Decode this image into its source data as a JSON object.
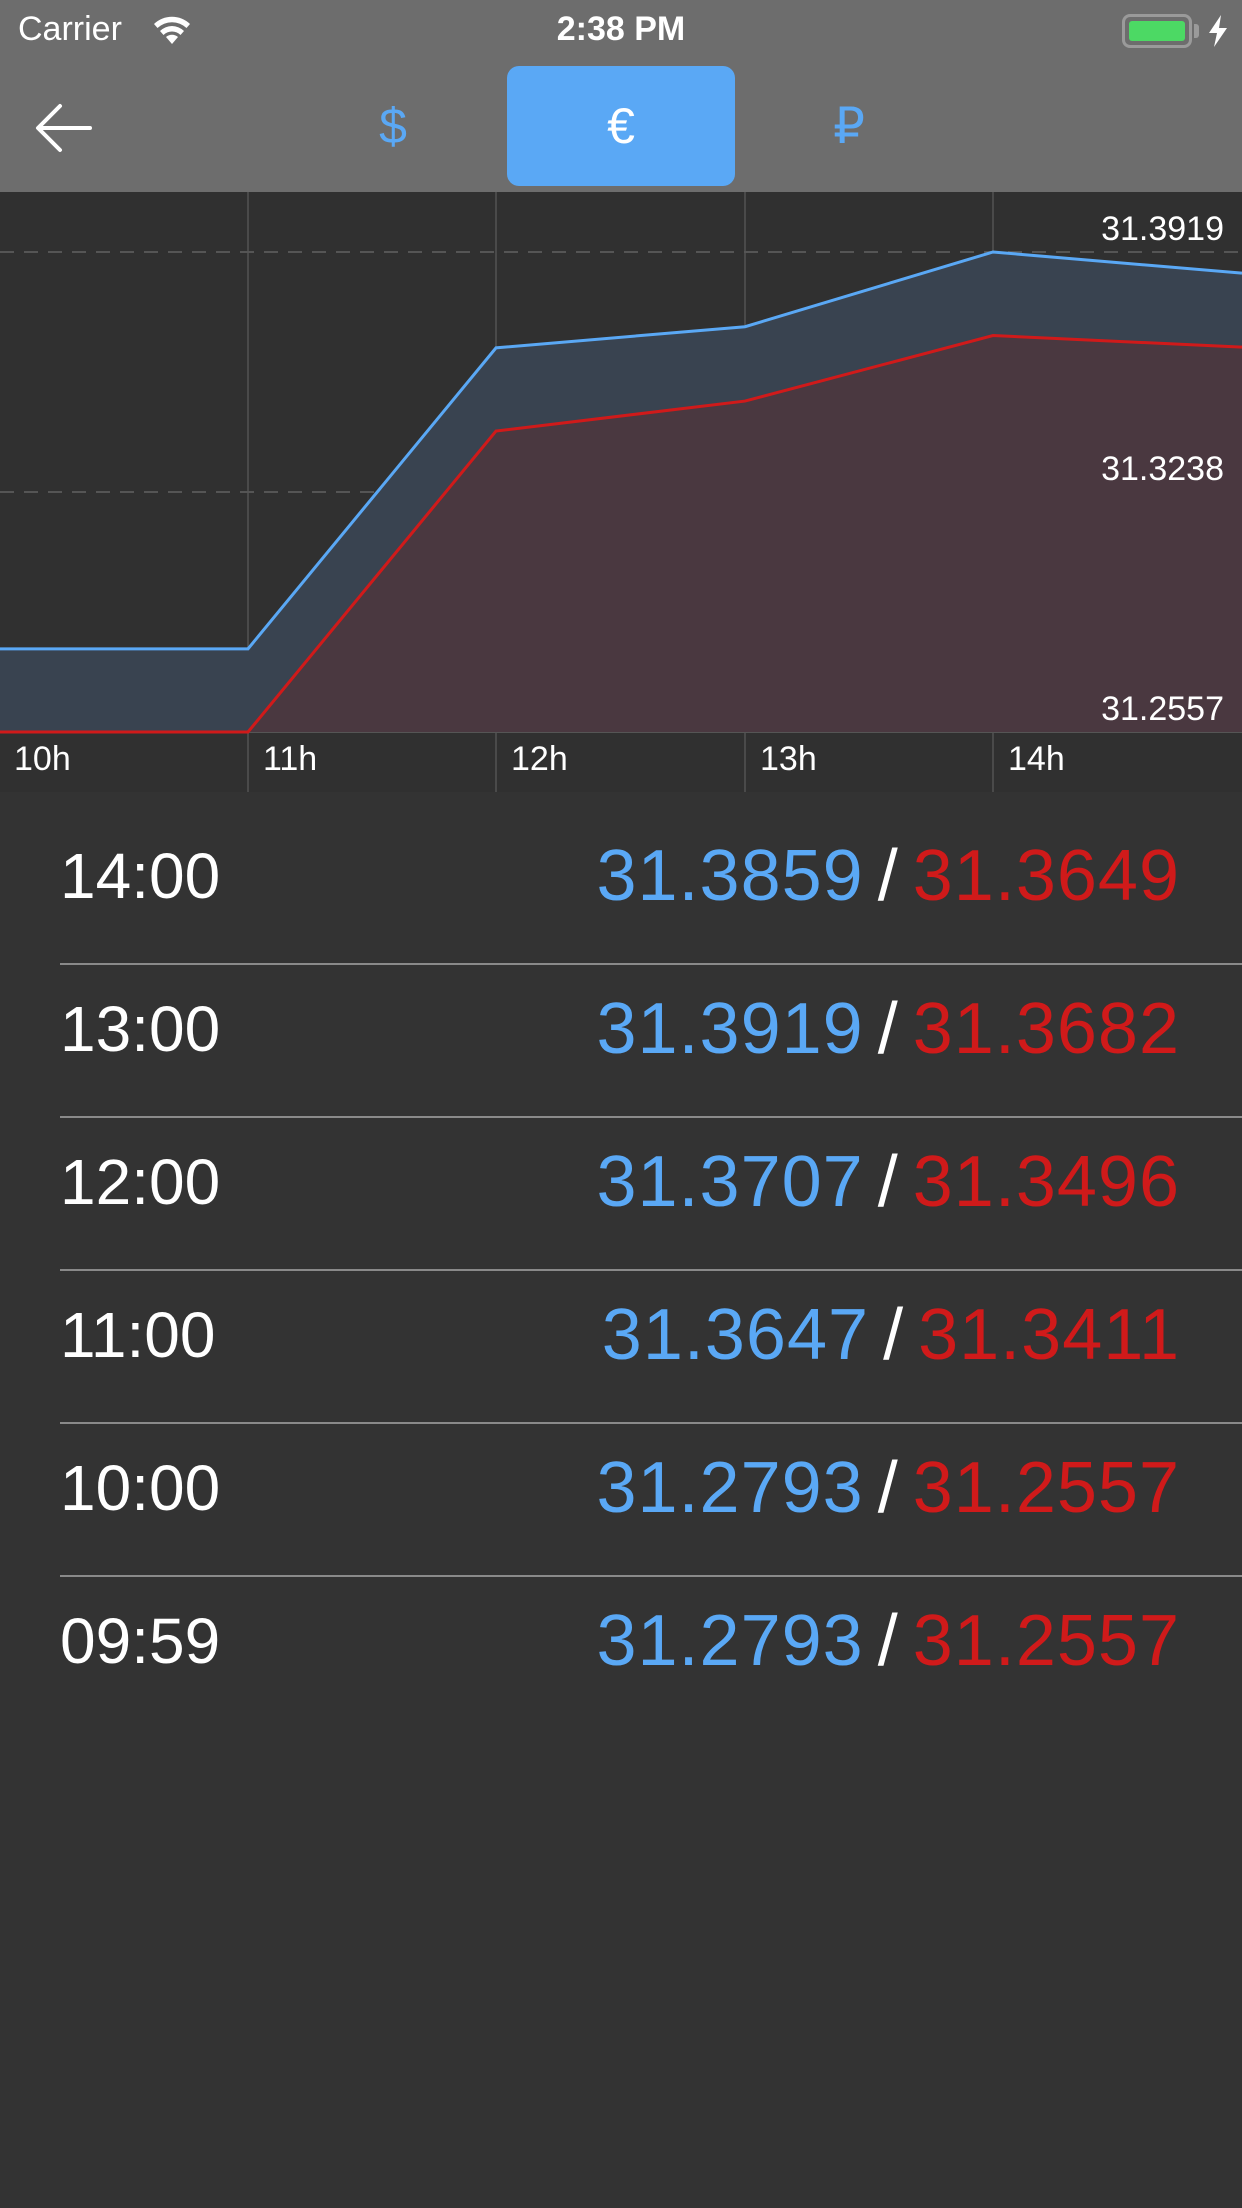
{
  "status_bar": {
    "carrier": "Carrier",
    "time": "2:38 PM",
    "battery_color": "#4cd964"
  },
  "nav": {
    "back_icon": "arrow-left-icon",
    "currencies": [
      {
        "symbol": "$",
        "active": false
      },
      {
        "symbol": "€",
        "active": true
      },
      {
        "symbol": "₽",
        "active": false
      }
    ],
    "accent_color": "#5aa8f5"
  },
  "chart_data": {
    "type": "area",
    "categories": [
      "10h",
      "10h",
      "11h",
      "12h",
      "13h",
      "14h",
      "14h"
    ],
    "x_tick_labels": [
      "10h",
      "11h",
      "12h",
      "13h",
      "14h"
    ],
    "y_tick_labels": [
      "31.3919",
      "31.3238",
      "31.2557"
    ],
    "ylim": [
      31.2557,
      31.3919
    ],
    "grid": true,
    "series": [
      {
        "color": "#5aa8f5",
        "values": [
          31.2793,
          31.2793,
          31.2793,
          31.3647,
          31.3707,
          31.3919,
          31.3859
        ]
      },
      {
        "color": "#d01a1a",
        "values": [
          31.2557,
          31.2557,
          31.2557,
          31.3411,
          31.3496,
          31.3682,
          31.3649
        ]
      }
    ]
  },
  "rates": [
    {
      "time": "14:00",
      "buy": "31.3859",
      "sell": "31.3649"
    },
    {
      "time": "13:00",
      "buy": "31.3919",
      "sell": "31.3682"
    },
    {
      "time": "12:00",
      "buy": "31.3707",
      "sell": "31.3496"
    },
    {
      "time": "11:00",
      "buy": "31.3647",
      "sell": "31.3411"
    },
    {
      "time": "10:00",
      "buy": "31.2793",
      "sell": "31.2557"
    },
    {
      "time": "09:59",
      "buy": "31.2793",
      "sell": "31.2557"
    }
  ],
  "separator": "/"
}
